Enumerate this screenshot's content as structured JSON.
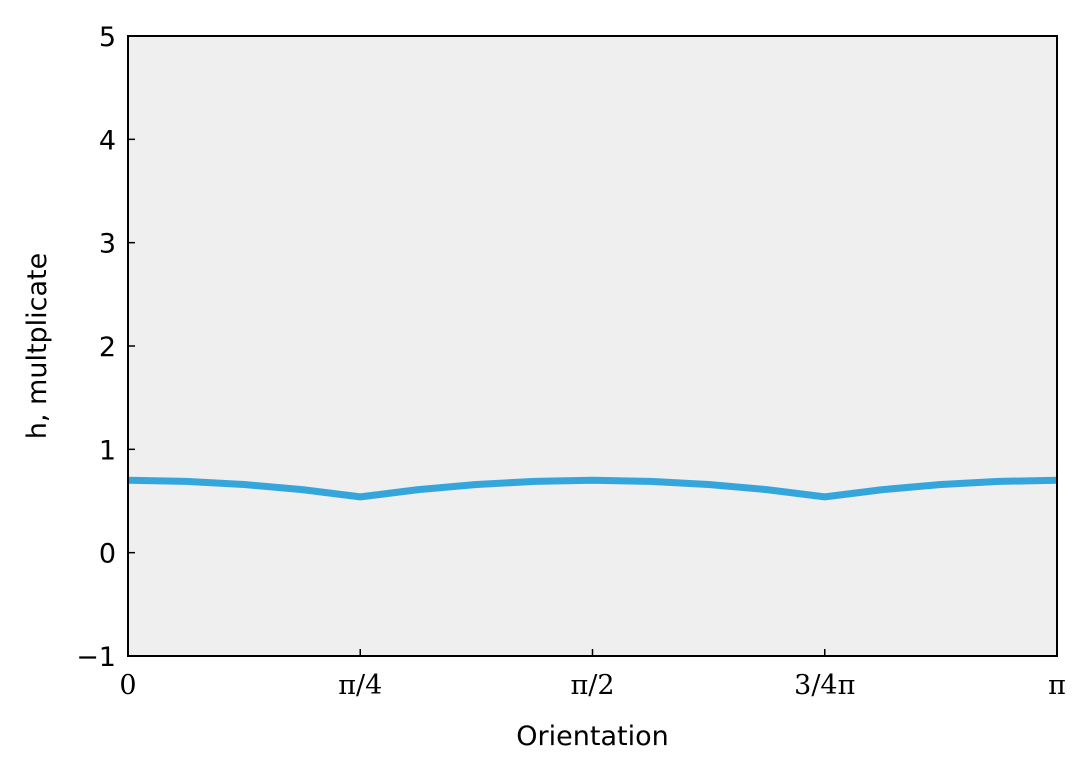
{
  "chart_data": {
    "type": "line",
    "title": "",
    "xlabel": "Orientation",
    "ylabel": "h, multplicate",
    "xlim": [
      0,
      3.14159
    ],
    "ylim": [
      -1,
      5
    ],
    "grid": false,
    "background_color": "#efefef",
    "x_ticks": [
      {
        "value": 0,
        "label": "0"
      },
      {
        "value": 0.7854,
        "label": "π/4"
      },
      {
        "value": 1.5708,
        "label": "π/2"
      },
      {
        "value": 2.3562,
        "label": "3/4π"
      },
      {
        "value": 3.14159,
        "label": "π"
      }
    ],
    "y_ticks": [
      {
        "value": -1,
        "label": "−1"
      },
      {
        "value": 0,
        "label": "0"
      },
      {
        "value": 1,
        "label": "1"
      },
      {
        "value": 2,
        "label": "2"
      },
      {
        "value": 3,
        "label": "3"
      },
      {
        "value": 4,
        "label": "4"
      },
      {
        "value": 5,
        "label": "5"
      }
    ],
    "series": [
      {
        "color": "#35a6dc",
        "x": [
          0,
          0.1963,
          0.3927,
          0.589,
          0.7854,
          0.9817,
          1.1781,
          1.3744,
          1.5708,
          1.7671,
          1.9635,
          2.1598,
          2.3562,
          2.5525,
          2.7489,
          2.9452,
          3.14159
        ],
        "y": [
          0.7,
          0.69,
          0.66,
          0.61,
          0.54,
          0.61,
          0.66,
          0.69,
          0.7,
          0.69,
          0.66,
          0.61,
          0.54,
          0.61,
          0.66,
          0.69,
          0.7
        ]
      }
    ]
  }
}
